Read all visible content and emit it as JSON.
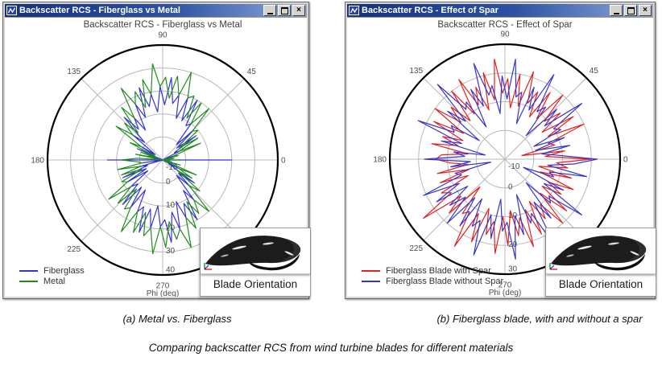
{
  "windows": [
    {
      "title": "Backscatter RCS - Fiberglass vs Metal"
    },
    {
      "title": "Backscatter RCS - Effect of Spar"
    }
  ],
  "window_controls": {
    "close_glyph": "×"
  },
  "inset": {
    "label": "Blade Orientation"
  },
  "captions": {
    "a": "(a) Metal vs. Fiberglass",
    "b": "(b) Fiberglass blade, with and without a spar",
    "bottom": "Comparing backscatter RCS from wind turbine blades for different materials"
  },
  "colors": {
    "fiberglass_blue": "#3434d0",
    "metal_green": "#1f8c1f",
    "spar_red": "#e22020",
    "grid_gray": "#b8b8b8",
    "label_gray": "#4d4d4d",
    "titlebar_left": "#14307e",
    "titlebar_right": "#8fa9d8"
  },
  "chart_data": [
    {
      "type": "line",
      "subtype": "polar-db",
      "title": "Backscatter RCS - Fiberglass vs Metal",
      "angle_unit_label": "Phi (deg)",
      "angle_ticks_deg": [
        0,
        45,
        90,
        135,
        180,
        225,
        270,
        315
      ],
      "radial_ticks_db": [
        0,
        10,
        20,
        30,
        40
      ],
      "rlim_db": [
        -10,
        40
      ],
      "phi_step_deg": 4,
      "grid": true,
      "legend_position": "bottom-left",
      "series": [
        {
          "name": "Fiberglass",
          "color": "#3434d0",
          "values": [
            20,
            -13,
            -17,
            -6,
            -15,
            -5,
            -13,
            -2,
            -4,
            8,
            -2,
            8,
            -1,
            10,
            8,
            20,
            9,
            19,
            9,
            19,
            15,
            26,
            14,
            22,
            11,
            19,
            14,
            23,
            10,
            17,
            5,
            12,
            7,
            15,
            1,
            7,
            -6,
            1,
            -6,
            2,
            -12,
            -6,
            -17,
            -9,
            -11,
            14,
            -11,
            -1,
            -11,
            0,
            -3,
            9,
            -2,
            8,
            -2,
            8,
            5,
            16,
            5,
            15,
            5,
            15,
            12,
            23,
            12,
            20,
            10,
            19,
            16,
            26,
            13,
            21,
            9,
            17,
            11,
            20,
            6,
            12,
            -1,
            6,
            -1,
            7,
            -7,
            -2,
            -15,
            -8,
            -14,
            -6,
            -17,
            -11
          ]
        },
        {
          "name": "Metal",
          "color": "#1f8c1f",
          "values": [
            -2,
            -13,
            -5,
            -15,
            -3,
            -5,
            8,
            -2,
            8,
            -1,
            10,
            8,
            20,
            10,
            20,
            11,
            21,
            19,
            30,
            19,
            27,
            17,
            26,
            22,
            32,
            19,
            26,
            14,
            22,
            17,
            26,
            12,
            19,
            6,
            13,
            7,
            15,
            1,
            6,
            -7,
            0,
            -6,
            2,
            -9,
            1,
            8,
            1,
            -1,
            10,
            0,
            9,
            0,
            10,
            8,
            19,
            8,
            17,
            7,
            17,
            15,
            26,
            15,
            24,
            14,
            24,
            20,
            31,
            19,
            28,
            17,
            25,
            21,
            30,
            17,
            23,
            11,
            18,
            12,
            20,
            6,
            11,
            -2,
            5,
            -2,
            6,
            -8,
            -2,
            -15,
            -7,
            -11
          ]
        }
      ]
    },
    {
      "type": "line",
      "subtype": "polar-db",
      "title": "Backscatter RCS - Effect of Spar",
      "angle_unit_label": "Phi (deg)",
      "angle_ticks_deg": [
        0,
        45,
        90,
        135,
        180,
        225,
        270,
        315
      ],
      "radial_ticks_db": [
        0,
        10,
        20,
        30
      ],
      "rlim_db": [
        -10,
        30
      ],
      "phi_step_deg": 4,
      "grid": true,
      "legend_position": "bottom-left",
      "series": [
        {
          "name": "Fiberglass Blade with Spar",
          "color": "#e22020",
          "values": [
            20,
            4,
            11,
            -4,
            8,
            6,
            20,
            7,
            18,
            6,
            15,
            9,
            20,
            8,
            18,
            7,
            16,
            11,
            22,
            9,
            20,
            8,
            18,
            13,
            25,
            11,
            21,
            8,
            17,
            11,
            22,
            9,
            20,
            8,
            16,
            10,
            20,
            7,
            18,
            6,
            13,
            7,
            16,
            3,
            12,
            14,
            9,
            3,
            14,
            3,
            14,
            4,
            15,
            12,
            25,
            10,
            17,
            3,
            14,
            12,
            25,
            11,
            21,
            8,
            17,
            12,
            23,
            10,
            20,
            8,
            17,
            11,
            22,
            9,
            19,
            7,
            15,
            10,
            20,
            7,
            18,
            6,
            13,
            7,
            16,
            3,
            14,
            2,
            12,
            8
          ]
        },
        {
          "name": "Fiberglass Blade without Spar",
          "color": "#3434d0",
          "values": [
            22,
            9,
            3,
            13,
            1,
            12,
            1,
            12,
            10,
            23,
            8,
            15,
            1,
            13,
            10,
            24,
            9,
            17,
            3,
            14,
            12,
            25,
            11,
            19,
            6,
            16,
            13,
            25,
            10,
            17,
            3,
            14,
            12,
            25,
            9,
            16,
            1,
            12,
            10,
            23,
            6,
            13,
            -3,
            8,
            4,
            18,
            2,
            9,
            -5,
            8,
            6,
            21,
            8,
            18,
            6,
            15,
            9,
            20,
            7,
            18,
            6,
            16,
            13,
            25,
            10,
            18,
            4,
            15,
            12,
            25,
            10,
            17,
            3,
            14,
            11,
            24,
            8,
            16,
            1,
            12,
            10,
            23,
            6,
            13,
            -3,
            8,
            6,
            19,
            5,
            14
          ]
        }
      ]
    }
  ]
}
